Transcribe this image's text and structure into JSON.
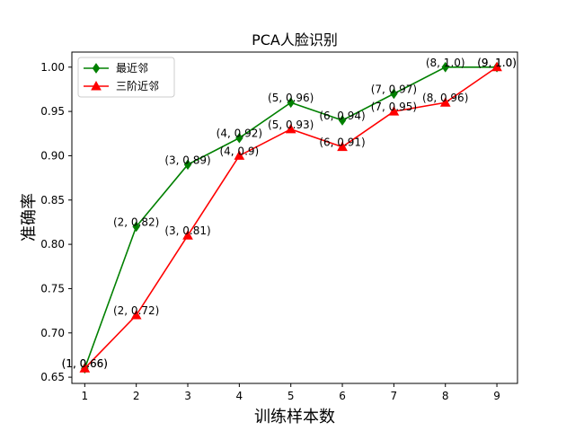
{
  "chart_data": {
    "type": "line",
    "title": "PCA人脸识别",
    "xlabel": "训练样本数",
    "ylabel": "准确率",
    "x": [
      1,
      2,
      3,
      4,
      5,
      6,
      7,
      8,
      9
    ],
    "xticks": [
      "1",
      "2",
      "3",
      "4",
      "5",
      "6",
      "7",
      "8",
      "9"
    ],
    "yticks": [
      "0.65",
      "0.70",
      "0.75",
      "0.80",
      "0.85",
      "0.90",
      "0.95",
      "1.00"
    ],
    "xlim": [
      0.75,
      9.4
    ],
    "ylim": [
      0.643,
      1.017
    ],
    "grid": false,
    "legend_position": "upper-left",
    "series": [
      {
        "name": "最近邻",
        "color": "#008000",
        "marker": "diamond",
        "values": [
          0.66,
          0.82,
          0.89,
          0.92,
          0.96,
          0.94,
          0.97,
          1.0,
          1.0
        ],
        "labels": [
          "(1, 0.66)",
          "(2, 0.82)",
          "(3, 0.89)",
          "(4, 0.92)",
          "(5, 0.96)",
          "(6, 0.94)",
          "(7, 0.97)",
          "(8, 1.0)",
          "(9, 1.0)"
        ]
      },
      {
        "name": "三阶近邻",
        "color": "#ff0000",
        "marker": "triangle",
        "values": [
          0.66,
          0.72,
          0.81,
          0.9,
          0.93,
          0.91,
          0.95,
          0.96,
          1.0
        ],
        "labels": [
          "(1, 0.66)",
          "(2, 0.72)",
          "(3, 0.81)",
          "(4, 0.9)",
          "(5, 0.93)",
          "(6, 0.91)",
          "(7, 0.95)",
          "(8, 0.96)",
          "(9, 1.0)"
        ]
      }
    ]
  }
}
